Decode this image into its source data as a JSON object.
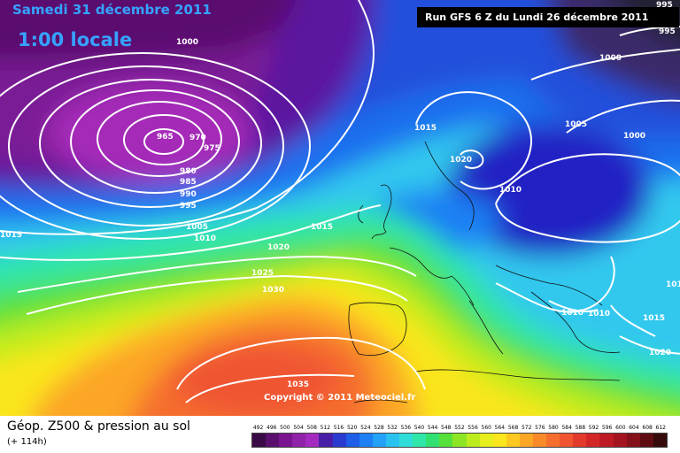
{
  "map": {
    "date_line": "Samedi 31 décembre 2011",
    "local_time": "1:00 locale",
    "run_info": "Run GFS 6 Z du Lundi 26 décembre 2011",
    "copyright": "Copyright © 2011 Meteociel.fr",
    "pressure_labels": [
      {
        "text": "1000"
      },
      {
        "text": "965"
      },
      {
        "text": "970"
      },
      {
        "text": "975"
      },
      {
        "text": "980"
      },
      {
        "text": "985"
      },
      {
        "text": "990"
      },
      {
        "text": "995"
      },
      {
        "text": "1005"
      },
      {
        "text": "1010"
      },
      {
        "text": "1015"
      },
      {
        "text": "1015"
      },
      {
        "text": "1020"
      },
      {
        "text": "1025"
      },
      {
        "text": "1030"
      },
      {
        "text": "1035"
      },
      {
        "text": "1015"
      },
      {
        "text": "1020"
      },
      {
        "text": "1010"
      },
      {
        "text": "1005"
      },
      {
        "text": "1000"
      },
      {
        "text": "1000"
      },
      {
        "text": "995"
      },
      {
        "text": "995"
      },
      {
        "text": "1010"
      },
      {
        "text": "1010"
      },
      {
        "text": "1015"
      },
      {
        "text": "1020"
      },
      {
        "text": "1015"
      }
    ]
  },
  "bottom": {
    "title": "Géop. Z500 & pression au sol",
    "subtitle": "(+ 114h)"
  },
  "legend": {
    "ticks": [
      "492",
      "496",
      "500",
      "504",
      "508",
      "512",
      "516",
      "520",
      "524",
      "528",
      "532",
      "536",
      "540",
      "544",
      "548",
      "552",
      "556",
      "560",
      "564",
      "568",
      "572",
      "576",
      "580",
      "584",
      "588",
      "592",
      "596",
      "600",
      "604",
      "608",
      "612"
    ],
    "colors": [
      "#3a0a46",
      "#5a0f6e",
      "#7a1490",
      "#8f22a8",
      "#a32bc0",
      "#4a1fa8",
      "#2a3bd0",
      "#1f5ee6",
      "#1e80f4",
      "#23a2f8",
      "#2ac3f0",
      "#2fdcd8",
      "#2ee6a8",
      "#30e070",
      "#56e03a",
      "#8ce626",
      "#bdec1e",
      "#e6ee1c",
      "#fae61c",
      "#fdc820",
      "#fca626",
      "#f98a2a",
      "#f56e2e",
      "#f05430",
      "#e43a2c",
      "#d32626",
      "#be1a24",
      "#a41420",
      "#84101a",
      "#5e0c12",
      "#360a0a"
    ]
  }
}
